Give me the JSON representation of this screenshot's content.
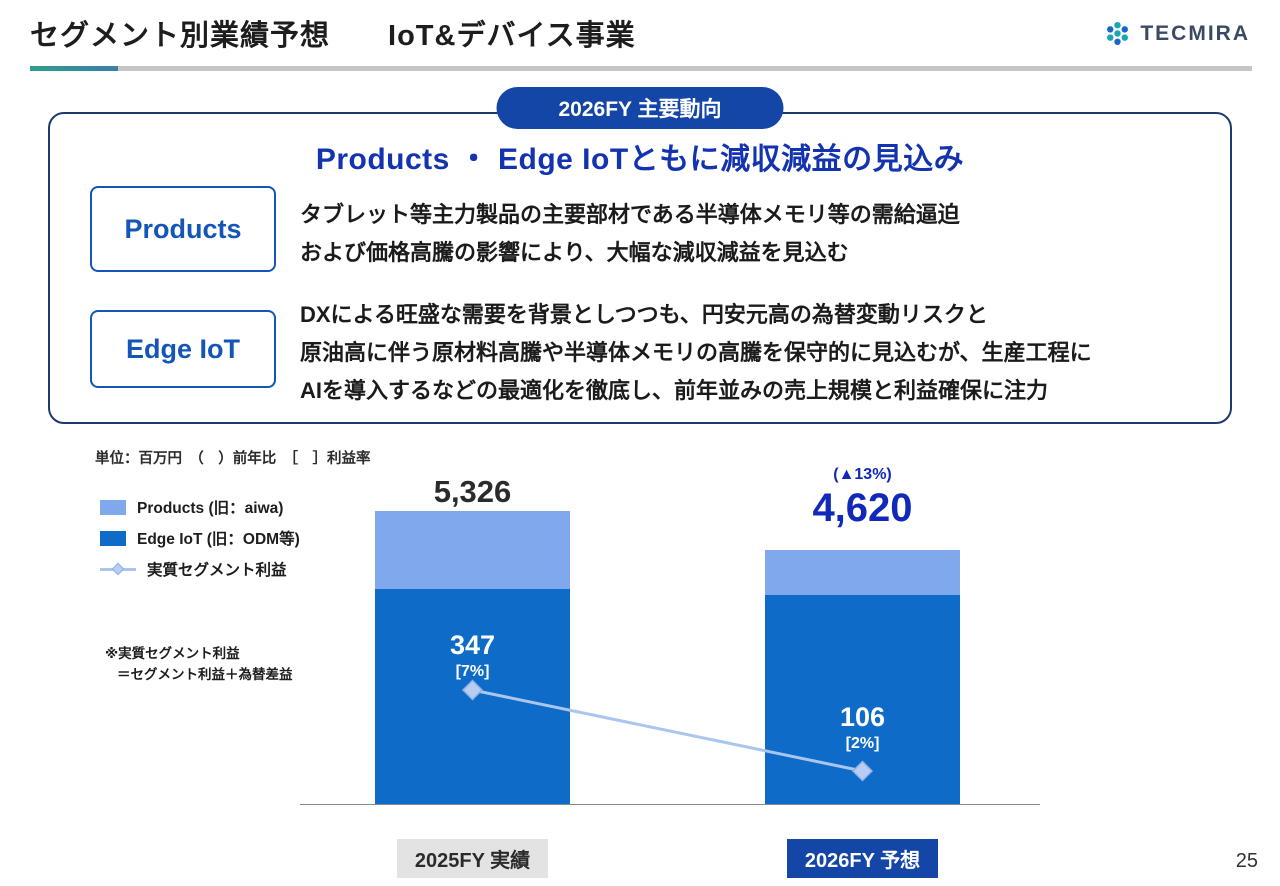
{
  "colors": {
    "primary-navy": "#1446A8",
    "headline-blue": "#1433B0",
    "strong-blue": "#1128B8",
    "label-blue": "#1456B8",
    "box-border": "#1C3A6E",
    "products-bar": "#7FA9EC",
    "edge-bar": "#0F6BC8",
    "profit-line": "#A9C6EE",
    "accent-teal": "#2F9E8C",
    "axis-gray": "#E3E3E3"
  },
  "header": {
    "title_left": "セグメント別業績予想",
    "title_right": "IoT&デバイス事業",
    "logo_text": "TECMIRA"
  },
  "badge": {
    "label": "2026FY 主要動向"
  },
  "summary": {
    "headline": "Products ・ Edge IoTともに減収減益の見込み",
    "items": [
      {
        "label": "Products",
        "lines": [
          "タブレット等主力製品の主要部材である半導体メモリ等の需給逼迫",
          "および価格高騰の影響により、大幅な減収減益を見込む"
        ]
      },
      {
        "label": "Edge IoT",
        "lines": [
          "DXによる旺盛な需要を背景としつつも、円安元高の為替変動リスクと",
          "原油高に伴う原材料高騰や半導体メモリの高騰を保守的に見込むが、生産工程に",
          "AIを導入するなどの最適化を徹底し、前年並みの売上規模と利益確保に注力"
        ]
      }
    ]
  },
  "chart_data": {
    "type": "bar",
    "stacked": true,
    "unit_note": "単位：百万円　（　）前年比　［　］利益率",
    "categories": [
      "2025FY 実績",
      "2026FY 予想"
    ],
    "series": [
      {
        "name": "Products (旧：aiwa)",
        "color": "#7FA9EC",
        "values": [
          1420,
          820
        ]
      },
      {
        "name": "Edge IoT (旧：ODM等)",
        "color": "#0F6BC8",
        "values": [
          3906,
          3800
        ]
      }
    ],
    "totals": [
      5326,
      4620
    ],
    "totals_display": [
      "5,326",
      "4,620"
    ],
    "yoy_display": "(▲13%)",
    "profit_series": {
      "name": "実質セグメント利益",
      "values": [
        347,
        106
      ],
      "values_display": [
        "347",
        "106"
      ],
      "margins_display": [
        "[7%]",
        "[2%]"
      ]
    },
    "footnote_lines": [
      "※実質セグメント利益",
      "＝セグメント利益＋為替差益"
    ],
    "legend_position": "left",
    "ylim": [
      0,
      5600
    ]
  },
  "footer": {
    "page_number": "25"
  }
}
